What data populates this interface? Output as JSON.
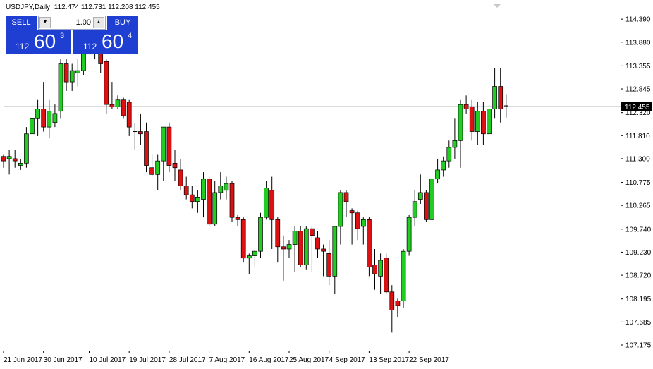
{
  "header": {
    "symbol": "USDJPY,Daily",
    "ohlc": "112.474 112.731 112.208 112.455"
  },
  "trade_panel": {
    "sell_label": "SELL",
    "buy_label": "BUY",
    "lot_value": "1.00",
    "sell_price": {
      "prefix": "112",
      "big": "60",
      "sup": "3"
    },
    "buy_price": {
      "prefix": "112",
      "big": "60",
      "sup": "4"
    }
  },
  "colors": {
    "bull": "#22cc22",
    "bear": "#dd1111",
    "wick": "#000000",
    "panel": "#1e3fd2"
  },
  "chart_data": {
    "type": "candlestick",
    "symbol": "USDJPY",
    "timeframe": "Daily",
    "current_price": 112.455,
    "ylim": [
      107.05,
      114.72
    ],
    "y_ticks": [
      "114.390",
      "113.880",
      "113.355",
      "112.845",
      "112.320",
      "111.810",
      "111.300",
      "110.775",
      "110.265",
      "109.740",
      "109.230",
      "108.720",
      "108.195",
      "107.685",
      "107.175"
    ],
    "x_ticks": [
      {
        "label": "21 Jun 2017",
        "index": 0
      },
      {
        "label": "30 Jun 2017",
        "index": 7
      },
      {
        "label": "10 Jul 2017",
        "index": 15
      },
      {
        "label": "19 Jul 2017",
        "index": 22
      },
      {
        "label": "28 Jul 2017",
        "index": 29
      },
      {
        "label": "7 Aug 2017",
        "index": 36
      },
      {
        "label": "16 Aug 2017",
        "index": 43
      },
      {
        "label": "25 Aug 2017",
        "index": 50
      },
      {
        "label": "4 Sep 2017",
        "index": 57
      },
      {
        "label": "13 Sep 2017",
        "index": 64
      },
      {
        "label": "22 Sep 2017",
        "index": 71
      }
    ],
    "candles": [
      [
        111.35,
        111.4,
        111.1,
        111.25
      ],
      [
        111.3,
        111.5,
        110.95,
        111.35
      ],
      [
        111.3,
        111.5,
        111.1,
        111.25
      ],
      [
        111.15,
        111.3,
        111.05,
        111.2
      ],
      [
        111.2,
        112.0,
        111.1,
        111.85
      ],
      [
        111.85,
        112.4,
        111.6,
        112.2
      ],
      [
        112.2,
        112.6,
        111.8,
        112.4
      ],
      [
        112.4,
        113.0,
        111.9,
        112.0
      ],
      [
        112.0,
        112.6,
        111.75,
        112.35
      ],
      [
        112.1,
        112.5,
        112.0,
        112.3
      ],
      [
        112.35,
        113.5,
        112.2,
        113.4
      ],
      [
        113.4,
        113.5,
        112.8,
        113.0
      ],
      [
        113.0,
        113.4,
        112.8,
        113.25
      ],
      [
        113.2,
        113.5,
        112.9,
        113.25
      ],
      [
        113.25,
        114.1,
        113.15,
        113.75
      ],
      [
        113.8,
        114.25,
        113.65,
        114.0
      ],
      [
        113.95,
        114.3,
        113.5,
        113.8
      ],
      [
        113.7,
        113.9,
        113.2,
        113.4
      ],
      [
        113.45,
        113.5,
        112.3,
        112.5
      ],
      [
        112.5,
        113.0,
        112.4,
        112.45
      ],
      [
        112.45,
        112.7,
        112.4,
        112.6
      ],
      [
        112.6,
        112.65,
        112.2,
        112.25
      ],
      [
        112.55,
        112.6,
        111.8,
        112.0
      ],
      [
        111.9,
        112.1,
        111.5,
        111.9
      ],
      [
        111.9,
        112.3,
        111.6,
        111.85
      ],
      [
        111.9,
        112.1,
        111.0,
        111.15
      ],
      [
        111.1,
        111.4,
        110.9,
        110.95
      ],
      [
        110.95,
        111.4,
        110.6,
        111.25
      ],
      [
        111.25,
        112.0,
        110.8,
        112.0
      ],
      [
        112.0,
        112.1,
        111.0,
        111.15
      ],
      [
        111.2,
        111.5,
        110.8,
        111.1
      ],
      [
        111.05,
        111.3,
        110.6,
        110.7
      ],
      [
        110.7,
        110.9,
        110.4,
        110.5
      ],
      [
        110.5,
        110.7,
        110.2,
        110.35
      ],
      [
        110.35,
        110.6,
        110.1,
        110.45
      ],
      [
        110.4,
        111.0,
        110.0,
        110.85
      ],
      [
        110.85,
        110.9,
        109.8,
        109.85
      ],
      [
        109.85,
        110.8,
        109.8,
        110.55
      ],
      [
        110.55,
        111.0,
        110.4,
        110.7
      ],
      [
        110.6,
        110.9,
        110.4,
        110.75
      ],
      [
        110.75,
        110.8,
        109.9,
        110.0
      ],
      [
        110.0,
        110.05,
        109.8,
        109.95
      ],
      [
        109.95,
        110.0,
        109.0,
        109.1
      ],
      [
        109.1,
        109.2,
        108.75,
        109.15
      ],
      [
        109.15,
        109.3,
        108.9,
        109.25
      ],
      [
        109.25,
        110.1,
        109.1,
        110.0
      ],
      [
        110.0,
        110.8,
        109.95,
        110.65
      ],
      [
        110.6,
        110.9,
        109.3,
        109.95
      ],
      [
        109.95,
        110.0,
        109.0,
        109.35
      ],
      [
        109.35,
        109.6,
        108.6,
        109.3
      ],
      [
        109.3,
        109.5,
        109.1,
        109.4
      ],
      [
        109.4,
        109.8,
        108.8,
        109.7
      ],
      [
        109.7,
        109.8,
        108.9,
        108.95
      ],
      [
        108.95,
        109.8,
        108.85,
        109.75
      ],
      [
        109.75,
        109.8,
        108.8,
        109.6
      ],
      [
        109.55,
        109.7,
        109.1,
        109.3
      ],
      [
        109.3,
        109.4,
        108.7,
        109.25
      ],
      [
        109.2,
        109.5,
        108.5,
        108.7
      ],
      [
        108.7,
        109.8,
        108.3,
        109.8
      ],
      [
        109.8,
        110.6,
        109.4,
        110.55
      ],
      [
        110.55,
        110.6,
        110.0,
        110.35
      ],
      [
        110.15,
        110.2,
        109.4,
        110.1
      ],
      [
        110.1,
        110.15,
        109.5,
        109.75
      ],
      [
        109.8,
        110.0,
        109.4,
        109.95
      ],
      [
        109.95,
        110.0,
        108.7,
        108.9
      ],
      [
        108.95,
        109.3,
        108.4,
        108.75
      ],
      [
        108.7,
        109.2,
        108.3,
        109.05
      ],
      [
        109.1,
        109.2,
        108.3,
        108.35
      ],
      [
        108.35,
        108.5,
        107.45,
        107.95
      ],
      [
        108.15,
        108.2,
        107.8,
        108.05
      ],
      [
        108.15,
        109.3,
        108.0,
        109.25
      ],
      [
        109.25,
        110.05,
        109.15,
        110.0
      ],
      [
        110.0,
        110.6,
        109.8,
        110.35
      ],
      [
        110.4,
        110.95,
        110.3,
        110.55
      ],
      [
        110.55,
        110.6,
        109.9,
        109.95
      ],
      [
        109.95,
        111.05,
        109.9,
        110.85
      ],
      [
        110.85,
        111.3,
        110.75,
        111.05
      ],
      [
        111.05,
        111.35,
        110.9,
        111.25
      ],
      [
        111.25,
        111.7,
        111.1,
        111.55
      ],
      [
        111.55,
        112.2,
        111.3,
        111.7
      ],
      [
        111.7,
        112.6,
        111.1,
        112.5
      ],
      [
        112.5,
        112.7,
        112.3,
        112.4
      ],
      [
        112.45,
        112.6,
        111.7,
        111.9
      ],
      [
        111.9,
        112.55,
        111.6,
        112.35
      ],
      [
        112.35,
        112.55,
        111.6,
        111.85
      ],
      [
        111.85,
        112.4,
        111.5,
        112.4
      ],
      [
        112.4,
        113.3,
        112.2,
        112.9
      ],
      [
        112.9,
        113.3,
        112.1,
        112.4
      ],
      [
        112.47,
        112.73,
        112.21,
        112.46
      ]
    ]
  }
}
